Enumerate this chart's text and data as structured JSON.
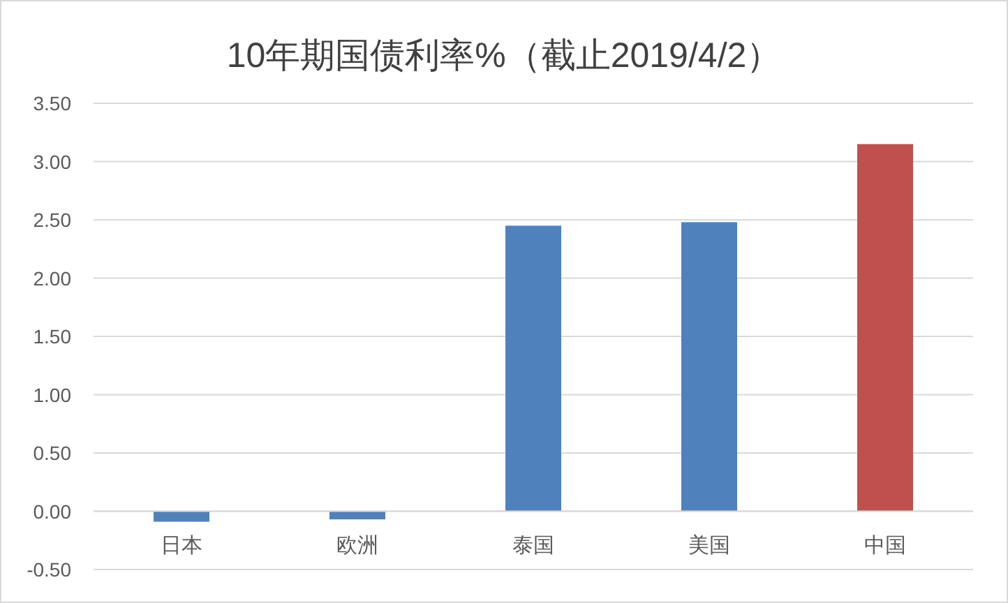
{
  "chart_data": {
    "type": "bar",
    "title": "10年期国债利率%（截止2019/4/2）",
    "categories": [
      "日本",
      "欧洲",
      "泰国",
      "美国",
      "中国"
    ],
    "values": [
      -0.09,
      -0.07,
      2.45,
      2.48,
      3.15
    ],
    "colors": [
      "#4f81bd",
      "#4f81bd",
      "#4f81bd",
      "#4f81bd",
      "#c0504d"
    ],
    "ylim": [
      -0.5,
      3.5
    ],
    "yticks": [
      {
        "value": -0.5,
        "label": "-0.50"
      },
      {
        "value": 0,
        "label": "0.00"
      },
      {
        "value": 0.5,
        "label": "0.50"
      },
      {
        "value": 1,
        "label": "1.00"
      },
      {
        "value": 1.5,
        "label": "1.50"
      },
      {
        "value": 2,
        "label": "2.00"
      },
      {
        "value": 2.5,
        "label": "2.50"
      },
      {
        "value": 3,
        "label": "3.00"
      },
      {
        "value": 3.5,
        "label": "3.50"
      }
    ],
    "grid": "y"
  }
}
